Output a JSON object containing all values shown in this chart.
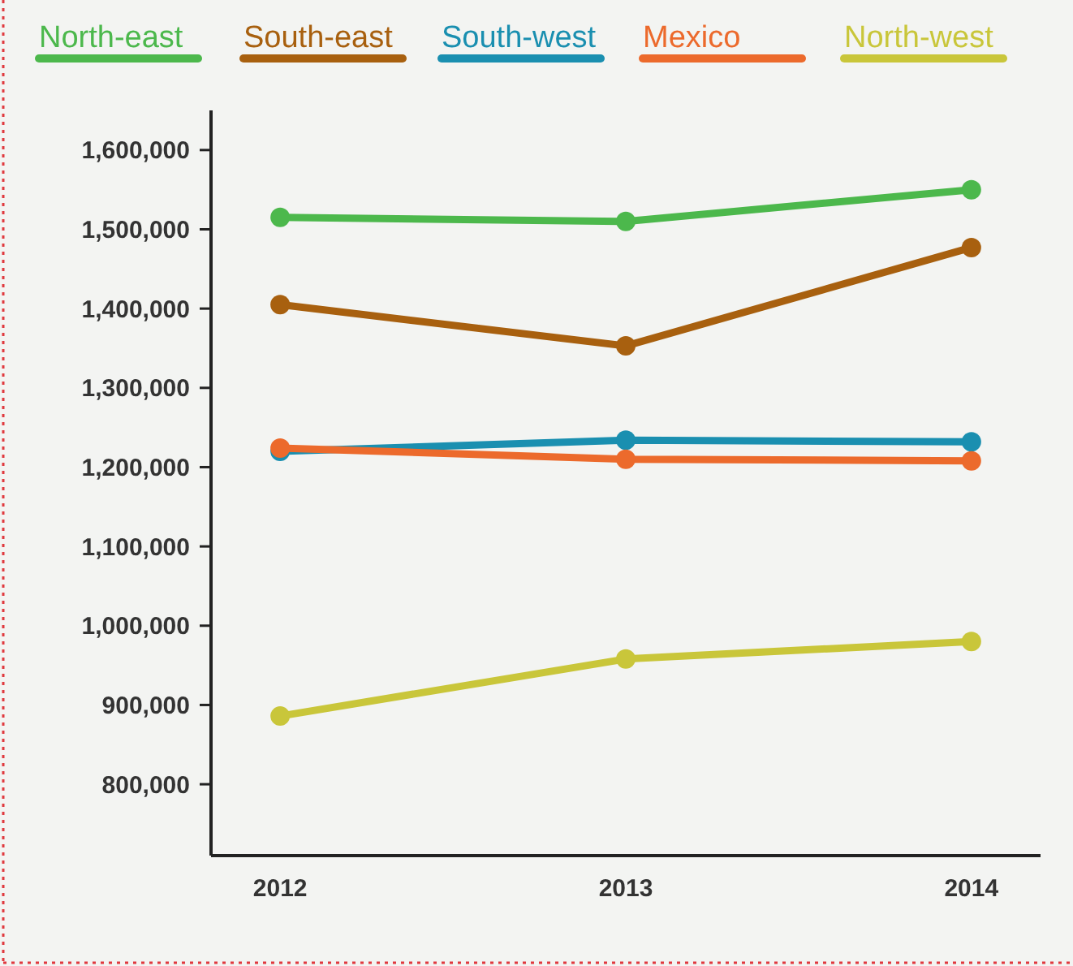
{
  "chart_data": {
    "type": "line",
    "categories": [
      "2012",
      "2013",
      "2014"
    ],
    "series": [
      {
        "name": "North-east",
        "color": "#4cb84c",
        "values": [
          1515000,
          1510000,
          1550000
        ]
      },
      {
        "name": "South-east",
        "color": "#a8600f",
        "values": [
          1405000,
          1353000,
          1477000
        ]
      },
      {
        "name": "South-west",
        "color": "#1a8fb0",
        "values": [
          1220000,
          1234000,
          1232000
        ]
      },
      {
        "name": "Mexico",
        "color": "#ec6a2c",
        "values": [
          1224000,
          1210000,
          1208000
        ]
      },
      {
        "name": "North-west",
        "color": "#c9c63a",
        "values": [
          886000,
          958000,
          980000
        ]
      }
    ],
    "ylim": [
      710000,
      1650000
    ],
    "yticks": [
      {
        "value": 800000,
        "label": "800,000"
      },
      {
        "value": 900000,
        "label": "900,000"
      },
      {
        "value": 1000000,
        "label": "1,000,000"
      },
      {
        "value": 1100000,
        "label": "1,100,000"
      },
      {
        "value": 1200000,
        "label": "1,200,000"
      },
      {
        "value": 1300000,
        "label": "1,300,000"
      },
      {
        "value": 1400000,
        "label": "1,400,000"
      },
      {
        "value": 1500000,
        "label": "1,500,000"
      },
      {
        "value": 1600000,
        "label": "1,600,000"
      }
    ],
    "grid": false,
    "legend": "top",
    "marker": "circle",
    "line_style": "solid"
  }
}
